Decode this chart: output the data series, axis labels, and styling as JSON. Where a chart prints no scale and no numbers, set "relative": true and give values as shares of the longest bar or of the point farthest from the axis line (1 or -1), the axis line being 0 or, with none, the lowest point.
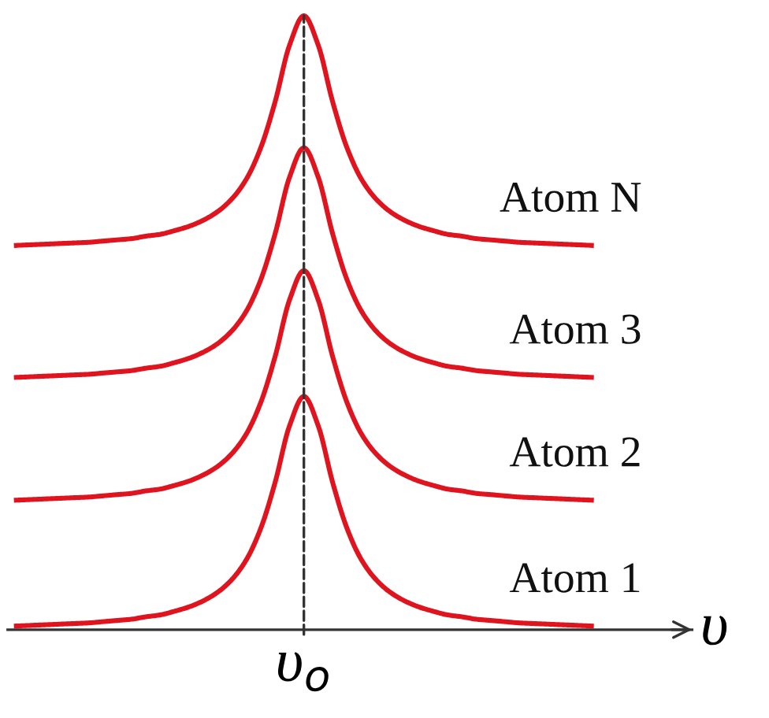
{
  "chart_data": {
    "type": "line",
    "relative": true,
    "xlabel": "υ",
    "categories": [
      null,
      null,
      null,
      null,
      null,
      null,
      null,
      null,
      null,
      null,
      null,
      null,
      null,
      null,
      null,
      null,
      null,
      null,
      null,
      null,
      null,
      null,
      null,
      null,
      null,
      null,
      null,
      null,
      null,
      null,
      null,
      null,
      null,
      null,
      null,
      null,
      null,
      null,
      null,
      null,
      null
    ],
    "annotations": [
      "υ$_{o}$"
    ],
    "series": [
      {
        "name": "Atom 1",
        "color": "#e0141e",
        "values": [
          0.006,
          0.007,
          0.008,
          0.009,
          0.01,
          0.011,
          0.013,
          0.015,
          0.017,
          0.021,
          0.024,
          0.03,
          0.037,
          0.047,
          0.061,
          0.082,
          0.114,
          0.165,
          0.24,
          0.332,
          0.38,
          0.332,
          0.24,
          0.165,
          0.114,
          0.082,
          0.061,
          0.047,
          0.037,
          0.03,
          0.024,
          0.021,
          0.017,
          0.015,
          0.013,
          0.011,
          0.01,
          0.009,
          0.008,
          0.007,
          0.006
        ]
      },
      {
        "name": "Atom 2",
        "color": "#e0141e",
        "values": [
          0.211,
          0.212,
          0.213,
          0.214,
          0.215,
          0.216,
          0.218,
          0.22,
          0.222,
          0.226,
          0.229,
          0.235,
          0.242,
          0.252,
          0.266,
          0.287,
          0.319,
          0.37,
          0.445,
          0.537,
          0.585,
          0.537,
          0.445,
          0.37,
          0.319,
          0.287,
          0.266,
          0.252,
          0.242,
          0.235,
          0.229,
          0.226,
          0.222,
          0.22,
          0.218,
          0.216,
          0.215,
          0.214,
          0.213,
          0.212,
          0.211
        ]
      },
      {
        "name": "Atom 3",
        "color": "#e0141e",
        "values": [
          0.411,
          0.412,
          0.413,
          0.414,
          0.415,
          0.416,
          0.418,
          0.42,
          0.422,
          0.426,
          0.429,
          0.435,
          0.442,
          0.452,
          0.466,
          0.487,
          0.519,
          0.57,
          0.645,
          0.737,
          0.785,
          0.737,
          0.645,
          0.57,
          0.519,
          0.487,
          0.466,
          0.452,
          0.442,
          0.435,
          0.429,
          0.426,
          0.422,
          0.42,
          0.418,
          0.416,
          0.415,
          0.414,
          0.413,
          0.412,
          0.411
        ]
      },
      {
        "name": "Atom N",
        "color": "#e0141e",
        "values": [
          0.626,
          0.627,
          0.628,
          0.629,
          0.63,
          0.631,
          0.633,
          0.635,
          0.637,
          0.641,
          0.644,
          0.65,
          0.657,
          0.667,
          0.681,
          0.702,
          0.734,
          0.785,
          0.86,
          0.952,
          1.0,
          0.952,
          0.86,
          0.785,
          0.734,
          0.702,
          0.681,
          0.667,
          0.657,
          0.65,
          0.644,
          0.641,
          0.637,
          0.635,
          0.633,
          0.631,
          0.63,
          0.629,
          0.628,
          0.627,
          0.626
        ]
      }
    ],
    "grid": false,
    "legend": false,
    "marker": "none",
    "line_style": "solid"
  }
}
